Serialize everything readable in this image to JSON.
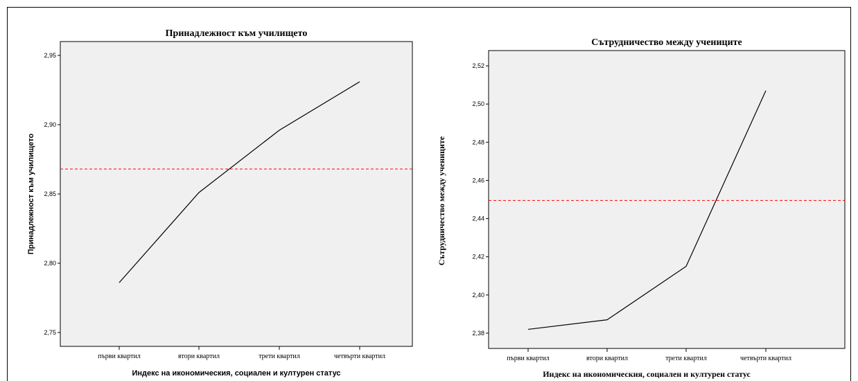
{
  "chart_data": [
    {
      "type": "line",
      "title": "Принадлежност към училището",
      "xlabel": "Индекс на икономическия, социален и културен статус",
      "ylabel": "Принадлежност към училището",
      "categories": [
        "първи квартил",
        "втори квартил",
        "трети квартил",
        "четвърти квартил"
      ],
      "values": [
        2.786,
        2.851,
        2.896,
        2.931
      ],
      "reference_line": 2.868,
      "ylim": [
        2.74,
        2.96
      ],
      "yticks": [
        2.75,
        2.8,
        2.85,
        2.9,
        2.95
      ],
      "ytick_labels": [
        "2,75",
        "2,80",
        "2,85",
        "2,90",
        "2,95"
      ],
      "line_color": "#000000",
      "reference_color": "#ff0000",
      "background": "#f0f0f0"
    },
    {
      "type": "line",
      "title": "Сътрудничество между учениците",
      "xlabel": "Индекс на икономическия, социален и културен статус",
      "ylabel": "Сътрудничество между учениците",
      "categories": [
        "първи квартил",
        "втори квартил",
        "трети квартил",
        "четвърти квартил"
      ],
      "values": [
        2.382,
        2.387,
        2.415,
        2.507
      ],
      "reference_line": 2.4495,
      "ylim": [
        2.372,
        2.528
      ],
      "yticks": [
        2.38,
        2.4,
        2.42,
        2.44,
        2.46,
        2.48,
        2.5,
        2.52
      ],
      "ytick_labels": [
        "2,38",
        "2,40",
        "2,42",
        "2,44",
        "2,46",
        "2,48",
        "2,50",
        "2,52"
      ],
      "line_color": "#000000",
      "reference_color": "#ff0000",
      "background": "#f0f0f0"
    }
  ]
}
